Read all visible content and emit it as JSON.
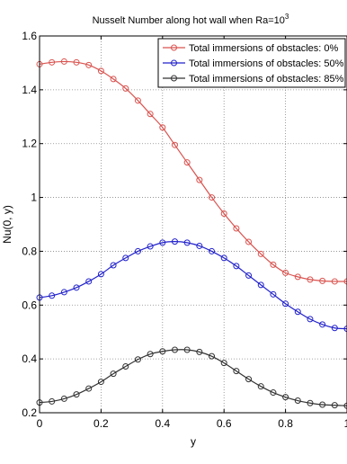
{
  "chart_data": {
    "type": "line",
    "title_main": "Nusselt Number along hot wall when Ra=10",
    "title_sup": "3",
    "xlabel": "y",
    "ylabel": "Nu(0, y)",
    "xlim": [
      0,
      1
    ],
    "ylim": [
      0.2,
      1.6
    ],
    "grid": true,
    "legend_placement": "top-right",
    "x_ticks": [
      0,
      0.2,
      0.4,
      0.6,
      0.8,
      1
    ],
    "x_tick_labels": [
      "0",
      "0.2",
      "0.4",
      "0.6",
      "0.8",
      "1"
    ],
    "y_ticks": [
      0.2,
      0.4,
      0.6,
      0.8,
      1,
      1.2,
      1.4,
      1.6
    ],
    "y_tick_labels": [
      "0.2",
      "0.4",
      "0.6",
      "0.8",
      "1",
      "1.2",
      "1.4",
      "1.6"
    ],
    "x": [
      0,
      0.04,
      0.08,
      0.12,
      0.16,
      0.2,
      0.24,
      0.28,
      0.32,
      0.36,
      0.4,
      0.44,
      0.48,
      0.52,
      0.56,
      0.6,
      0.64,
      0.68,
      0.72,
      0.76,
      0.8,
      0.84,
      0.88,
      0.92,
      0.96,
      1.0
    ],
    "series": [
      {
        "name": "Total immersions of obstacles: 0%",
        "color": "#d9534f",
        "values": [
          1.495,
          1.502,
          1.505,
          1.502,
          1.492,
          1.47,
          1.44,
          1.405,
          1.36,
          1.31,
          1.26,
          1.195,
          1.13,
          1.065,
          1.0,
          0.94,
          0.885,
          0.835,
          0.79,
          0.75,
          0.72,
          0.705,
          0.695,
          0.69,
          0.688,
          0.688
        ]
      },
      {
        "name": "Total immersions of obstacles: 50%",
        "color": "#2222cc",
        "values": [
          0.628,
          0.635,
          0.648,
          0.665,
          0.688,
          0.715,
          0.748,
          0.775,
          0.8,
          0.818,
          0.832,
          0.836,
          0.832,
          0.82,
          0.8,
          0.775,
          0.745,
          0.71,
          0.675,
          0.64,
          0.605,
          0.575,
          0.548,
          0.528,
          0.515,
          0.512
        ]
      },
      {
        "name": "Total immersions of obstacles: 85%",
        "color": "#333333",
        "values": [
          0.238,
          0.242,
          0.252,
          0.268,
          0.29,
          0.315,
          0.345,
          0.372,
          0.398,
          0.418,
          0.428,
          0.434,
          0.434,
          0.426,
          0.41,
          0.385,
          0.355,
          0.325,
          0.298,
          0.275,
          0.258,
          0.245,
          0.236,
          0.23,
          0.228,
          0.226
        ]
      }
    ]
  }
}
